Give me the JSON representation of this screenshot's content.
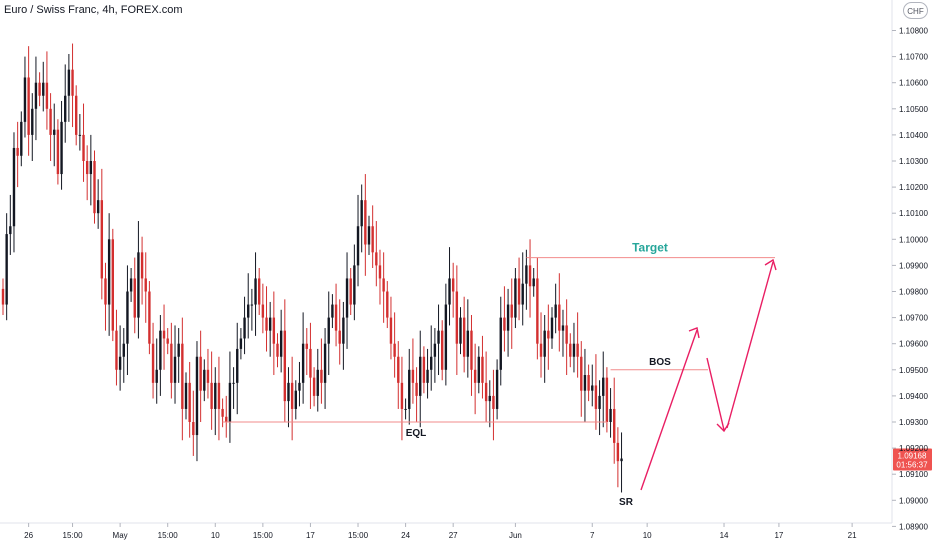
{
  "header": {
    "title": "Euro / Swiss Franc, 4h, FOREX.com",
    "currency_badge": "CHF"
  },
  "colors": {
    "up": "#131722",
    "down": "#d32f2f",
    "annotation_line": "#f28b8b",
    "arrow": "#e91e63",
    "target_text": "#26a69a",
    "price_tag": "#ef5350"
  },
  "chart_data": {
    "type": "candlestick",
    "symbol": "EURCHF",
    "timeframe": "4h",
    "y_axis": {
      "ylim": [
        1.0885,
        1.1095
      ],
      "ticks": [
        "1.10800",
        "1.10700",
        "1.10600",
        "1.10500",
        "1.10400",
        "1.10300",
        "1.10200",
        "1.10100",
        "1.10000",
        "1.09900",
        "1.09800",
        "1.09700",
        "1.09600",
        "1.09500",
        "1.09400",
        "1.09300",
        "1.09200",
        "1.09100",
        "1.09000",
        "1.08900"
      ]
    },
    "x_axis": {
      "ticks": [
        {
          "label": "26",
          "bar": 7
        },
        {
          "label": "15:00",
          "bar": 19
        },
        {
          "label": "May",
          "bar": 32
        },
        {
          "label": "15:00",
          "bar": 45
        },
        {
          "label": "10",
          "bar": 58
        },
        {
          "label": "15:00",
          "bar": 71
        },
        {
          "label": "17",
          "bar": 84
        },
        {
          "label": "15:00",
          "bar": 97
        },
        {
          "label": "24",
          "bar": 110
        },
        {
          "label": "27",
          "bar": 123
        },
        {
          "label": "Jun",
          "bar": 140
        },
        {
          "label": "7",
          "bar": 161
        },
        {
          "label": "10",
          "bar": 176
        },
        {
          "label": "14",
          "bar": 197
        },
        {
          "label": "17",
          "bar": 212
        },
        {
          "label": "21",
          "bar": 232
        }
      ]
    },
    "closes": [
      1.0975,
      1.1002,
      1.1005,
      1.1035,
      1.1032,
      1.1045,
      1.1062,
      1.104,
      1.105,
      1.106,
      1.1055,
      1.106,
      1.105,
      1.104,
      1.1042,
      1.1025,
      1.1045,
      1.1055,
      1.1065,
      1.1055,
      1.104,
      1.104,
      1.103,
      1.1025,
      1.103,
      1.101,
      1.1015,
      1.0985,
      1.0975,
      1.1,
      1.0965,
      1.095,
      1.0955,
      1.096,
      1.098,
      1.0985,
      1.097,
      1.0995,
      1.0985,
      1.098,
      1.096,
      1.0945,
      1.095,
      1.0965,
      1.0962,
      1.096,
      1.0945,
      1.0955,
      1.096,
      1.0935,
      1.0945,
      1.093,
      1.0925,
      1.0955,
      1.0942,
      1.095,
      1.0945,
      1.0935,
      1.0945,
      1.0935,
      1.0932,
      1.093,
      1.0945,
      1.0945,
      1.0958,
      1.0962,
      1.097,
      1.0975,
      1.0975,
      1.0985,
      1.0975,
      1.097,
      1.0965,
      1.097,
      1.096,
      1.0955,
      1.0965,
      1.0938,
      1.0945,
      1.0935,
      1.0942,
      1.0945,
      1.096,
      1.0958,
      1.0947,
      1.094,
      1.095,
      1.0945,
      1.096,
      1.097,
      1.0975,
      1.0965,
      1.096,
      1.097,
      1.0985,
      1.0975,
      1.099,
      1.1005,
      1.1015,
      1.0998,
      1.1005,
      1.0995,
      1.099,
      1.0985,
      1.098,
      1.097,
      1.096,
      1.0955,
      1.0945,
      1.0935,
      1.0935,
      1.095,
      1.0945,
      1.094,
      1.0955,
      1.0945,
      1.095,
      1.0955,
      1.096,
      1.0965,
      1.095,
      1.0975,
      1.0985,
      1.098,
      1.096,
      1.097,
      1.0955,
      1.0965,
      1.095,
      1.0945,
      1.0955,
      1.0945,
      1.0938,
      1.094,
      1.0935,
      1.095,
      1.097,
      1.0965,
      1.0975,
      1.097,
      1.0985,
      1.0975,
      1.0983,
      1.099,
      1.0982,
      1.0985,
      1.096,
      1.0955,
      1.0965,
      1.0962,
      1.097,
      1.0975,
      1.0965,
      1.0967,
      1.096,
      1.0955,
      1.096,
      1.0955,
      1.0942,
      1.0948,
      1.0942,
      1.0944,
      1.0935,
      1.094,
      1.0947,
      1.093,
      1.0935,
      1.0922,
      1.0915,
      1.0916
    ],
    "annotations": [
      {
        "type": "hline",
        "label": "Target",
        "price": 1.0993
      },
      {
        "type": "hline",
        "label": "BOS",
        "price": 1.095
      },
      {
        "type": "hline",
        "label": "EQL",
        "price": 1.093
      },
      {
        "type": "text",
        "label": "SR"
      }
    ],
    "last_price": {
      "value": "1.09168",
      "countdown": "01:56:37"
    }
  }
}
